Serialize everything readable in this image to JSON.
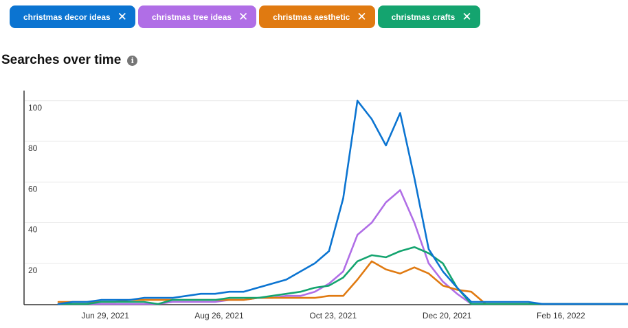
{
  "filters": [
    {
      "label": "christmas decor ideas",
      "color": "#0b74d1"
    },
    {
      "label": "christmas tree ideas",
      "color": "#b06ee6"
    },
    {
      "label": "christmas aesthetic",
      "color": "#e07a11"
    },
    {
      "label": "christmas crafts",
      "color": "#14a46f"
    }
  ],
  "close_glyph": "✕",
  "section_title": "Searches over time",
  "info_glyph": "i",
  "chart_data": {
    "type": "line",
    "x": [
      "Jun 8, 2021",
      "Jun 15, 2021",
      "Jun 22, 2021",
      "Jun 29, 2021",
      "Jul 6, 2021",
      "Jul 13, 2021",
      "Jul 20, 2021",
      "Jul 27, 2021",
      "Aug 3, 2021",
      "Aug 10, 2021",
      "Aug 17, 2021",
      "Aug 24, 2021",
      "Aug 31, 2021",
      "Sep 7, 2021",
      "Sep 14, 2021",
      "Sep 21, 2021",
      "Sep 28, 2021",
      "Oct 5, 2021",
      "Oct 12, 2021",
      "Oct 19, 2021",
      "Oct 26, 2021",
      "Nov 2, 2021",
      "Nov 9, 2021",
      "Nov 16, 2021",
      "Nov 23, 2021",
      "Nov 30, 2021",
      "Dec 7, 2021",
      "Dec 14, 2021",
      "Dec 21, 2021",
      "Dec 28, 2021",
      "Jan 4, 2022",
      "Jan 11, 2022",
      "Jan 18, 2022",
      "Jan 25, 2022",
      "Feb 1, 2022",
      "Feb 8, 2022",
      "Feb 15, 2022",
      "Feb 22, 2022",
      "Mar 1, 2022",
      "Mar 8, 2022",
      "Mar 15, 2022"
    ],
    "x_ticks": [
      "Jun 29, 2021",
      "Aug 26, 2021",
      "Oct 23, 2021",
      "Dec 20, 2021",
      "Feb 16, 2022"
    ],
    "y_ticks": [
      20,
      40,
      60,
      80,
      100
    ],
    "ylim": [
      0,
      105
    ],
    "grid": true,
    "series": [
      {
        "name": "christmas decor ideas",
        "color": "#0b74d1",
        "values": [
          0,
          1,
          1,
          2,
          2,
          2,
          3,
          3,
          3,
          4,
          5,
          5,
          6,
          6,
          8,
          10,
          12,
          16,
          20,
          26,
          52,
          100,
          91,
          78,
          94,
          62,
          27,
          16,
          8,
          1,
          1,
          1,
          1,
          1,
          0,
          0,
          0,
          0,
          0,
          0,
          0
        ]
      },
      {
        "name": "christmas tree ideas",
        "color": "#b06ee6",
        "values": [
          0,
          0,
          0,
          0,
          0,
          0,
          0,
          0,
          1,
          1,
          1,
          1,
          2,
          2,
          3,
          3,
          4,
          4,
          6,
          10,
          16,
          34,
          40,
          50,
          56,
          40,
          20,
          11,
          5,
          0,
          0,
          0,
          0,
          0,
          0,
          0,
          0,
          0,
          0,
          0,
          0
        ]
      },
      {
        "name": "christmas aesthetic",
        "color": "#e07a11",
        "values": [
          1,
          1,
          1,
          1,
          1,
          2,
          2,
          2,
          2,
          2,
          2,
          2,
          2,
          2,
          3,
          3,
          3,
          3,
          3,
          4,
          4,
          12,
          21,
          17,
          15,
          18,
          15,
          9,
          7,
          6,
          0,
          0,
          0,
          0,
          0,
          0,
          0,
          0,
          0,
          0,
          0
        ]
      },
      {
        "name": "christmas crafts",
        "color": "#14a46f",
        "values": [
          0,
          0,
          0,
          1,
          1,
          1,
          1,
          0,
          2,
          2,
          2,
          2,
          3,
          3,
          3,
          4,
          5,
          6,
          8,
          9,
          13,
          21,
          24,
          23,
          26,
          28,
          25,
          20,
          8,
          0,
          0,
          0,
          0,
          0,
          0,
          0,
          0,
          0,
          0,
          0,
          0
        ]
      }
    ]
  }
}
